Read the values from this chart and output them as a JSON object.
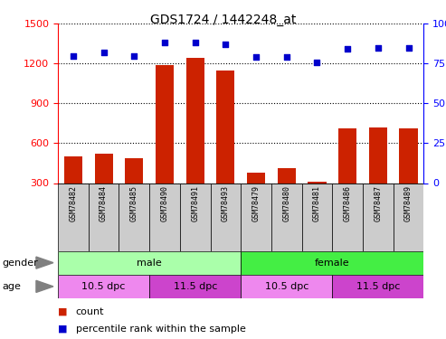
{
  "title": "GDS1724 / 1442248_at",
  "samples": [
    "GSM78482",
    "GSM78484",
    "GSM78485",
    "GSM78490",
    "GSM78491",
    "GSM78493",
    "GSM78479",
    "GSM78480",
    "GSM78481",
    "GSM78486",
    "GSM78487",
    "GSM78489"
  ],
  "counts": [
    500,
    520,
    490,
    1190,
    1240,
    1150,
    380,
    410,
    310,
    710,
    720,
    710
  ],
  "percentiles": [
    80,
    82,
    80,
    88,
    88,
    87,
    79,
    79,
    76,
    84,
    85,
    85
  ],
  "ylim_left": [
    300,
    1500
  ],
  "ylim_right": [
    0,
    100
  ],
  "yticks_left": [
    300,
    600,
    900,
    1200,
    1500
  ],
  "yticks_right": [
    0,
    25,
    50,
    75,
    100
  ],
  "bar_color": "#cc2200",
  "dot_color": "#0000cc",
  "gender_groups": [
    {
      "label": "male",
      "start": 0,
      "end": 6,
      "color": "#aaffaa"
    },
    {
      "label": "female",
      "start": 6,
      "end": 12,
      "color": "#44ee44"
    }
  ],
  "age_groups": [
    {
      "label": "10.5 dpc",
      "start": 0,
      "end": 3,
      "color": "#ee88ee"
    },
    {
      "label": "11.5 dpc",
      "start": 3,
      "end": 6,
      "color": "#cc44cc"
    },
    {
      "label": "10.5 dpc",
      "start": 6,
      "end": 9,
      "color": "#ee88ee"
    },
    {
      "label": "11.5 dpc",
      "start": 9,
      "end": 12,
      "color": "#cc44cc"
    }
  ],
  "legend_count_color": "#cc2200",
  "legend_dot_color": "#0000cc",
  "sample_bg_color": "#cccccc",
  "tick_fontsize": 8,
  "title_fontsize": 10,
  "label_fontsize": 8,
  "sample_fontsize": 6,
  "row_label_fontsize": 8,
  "cell_label_fontsize": 8
}
